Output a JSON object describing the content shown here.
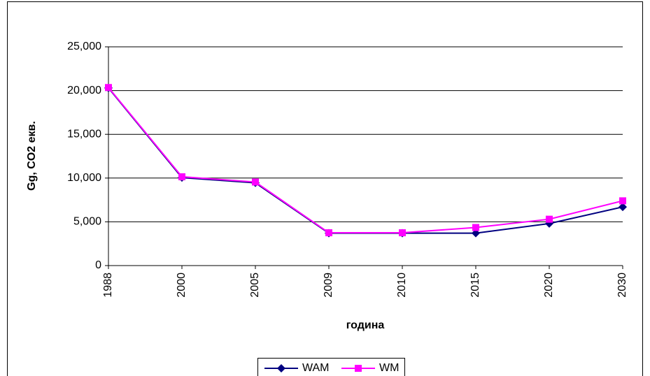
{
  "chart_data": {
    "type": "line",
    "x_label": "година",
    "y_label": "Gg, CO2 екв.",
    "categories": [
      "1988",
      "2000",
      "2005",
      "2009",
      "2010",
      "2015",
      "2020",
      "2030"
    ],
    "series": [
      {
        "name": "WAM",
        "color": "#000080",
        "marker": "diamond",
        "values": [
          20300,
          10050,
          9450,
          3700,
          3700,
          3700,
          4800,
          6700
        ]
      },
      {
        "name": "WM",
        "color": "#ff00ff",
        "marker": "square",
        "values": [
          20350,
          10150,
          9550,
          3750,
          3750,
          4350,
          5300,
          7400
        ]
      }
    ],
    "ylim": [
      0,
      25000
    ],
    "yticks": [
      0,
      {
        "value": 5000,
        "label": "5,000"
      },
      {
        "value": 10000,
        "label": "10,000"
      },
      {
        "value": 15000,
        "label": "15,000"
      },
      {
        "value": 20000,
        "label": "20,000"
      },
      {
        "value": 25000,
        "label": "25,000"
      }
    ],
    "grid": true,
    "legend": "bottom"
  }
}
